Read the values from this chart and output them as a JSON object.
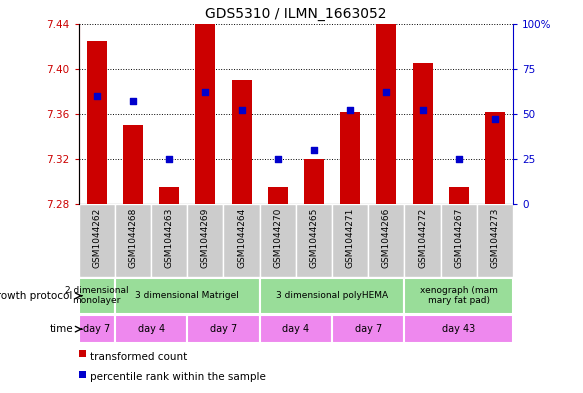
{
  "title": "GDS5310 / ILMN_1663052",
  "samples": [
    "GSM1044262",
    "GSM1044268",
    "GSM1044263",
    "GSM1044269",
    "GSM1044264",
    "GSM1044270",
    "GSM1044265",
    "GSM1044271",
    "GSM1044266",
    "GSM1044272",
    "GSM1044267",
    "GSM1044273"
  ],
  "bar_bottoms": [
    7.28,
    7.28,
    7.28,
    7.28,
    7.28,
    7.28,
    7.28,
    7.28,
    7.28,
    7.28,
    7.28,
    7.28
  ],
  "bar_tops": [
    7.425,
    7.35,
    7.295,
    7.44,
    7.39,
    7.295,
    7.32,
    7.362,
    7.44,
    7.405,
    7.295,
    7.362
  ],
  "percentile_values": [
    0.6,
    0.57,
    0.25,
    0.62,
    0.52,
    0.25,
    0.3,
    0.52,
    0.62,
    0.52,
    0.25,
    0.47
  ],
  "ylim": [
    7.28,
    7.44
  ],
  "yticks": [
    7.28,
    7.32,
    7.36,
    7.4,
    7.44
  ],
  "right_yticks": [
    0,
    25,
    50,
    75,
    100
  ],
  "bar_color": "#cc0000",
  "dot_color": "#0000cc",
  "left_label_color": "#cc0000",
  "right_label_color": "#0000cc",
  "bar_width": 0.55,
  "dot_size": 18,
  "growth_protocol_groups": [
    {
      "label": "2 dimensional\nmonolayer",
      "start": 0,
      "end": 1
    },
    {
      "label": "3 dimensional Matrigel",
      "start": 1,
      "end": 5
    },
    {
      "label": "3 dimensional polyHEMA",
      "start": 5,
      "end": 9
    },
    {
      "label": "xenograph (mam\nmary fat pad)",
      "start": 9,
      "end": 12
    }
  ],
  "time_groups": [
    {
      "label": "day 7",
      "start": 0,
      "end": 1
    },
    {
      "label": "day 4",
      "start": 1,
      "end": 3
    },
    {
      "label": "day 7",
      "start": 3,
      "end": 5
    },
    {
      "label": "day 4",
      "start": 5,
      "end": 7
    },
    {
      "label": "day 7",
      "start": 7,
      "end": 9
    },
    {
      "label": "day 43",
      "start": 9,
      "end": 12
    }
  ],
  "protocol_color": "#99dd99",
  "time_color": "#ee88ee",
  "gray_color": "#cccccc",
  "legend_items": [
    {
      "label": "transformed count",
      "color": "#cc0000"
    },
    {
      "label": "percentile rank within the sample",
      "color": "#0000cc"
    }
  ],
  "figsize": [
    5.83,
    3.93
  ],
  "dpi": 100
}
